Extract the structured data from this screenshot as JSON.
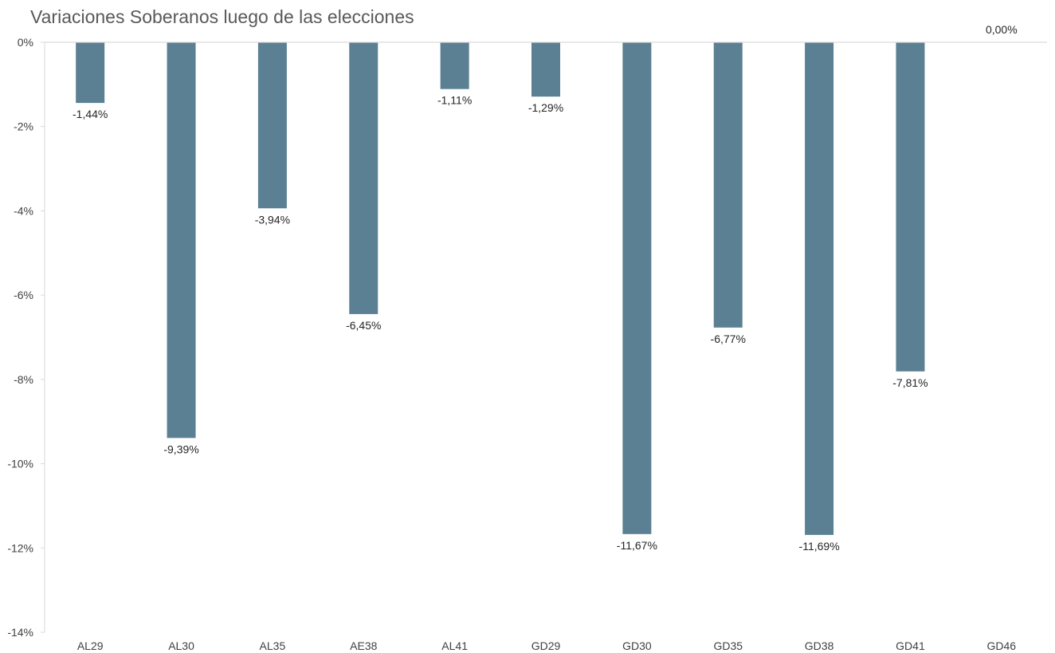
{
  "chart_data": {
    "type": "bar",
    "title": "Variaciones Soberanos luego de las elecciones",
    "categories": [
      "AL29",
      "AL30",
      "AL35",
      "AE38",
      "AL41",
      "GD29",
      "GD30",
      "GD35",
      "GD38",
      "GD41",
      "GD46"
    ],
    "values": [
      -1.44,
      -9.39,
      -3.94,
      -6.45,
      -1.11,
      -1.29,
      -11.67,
      -6.77,
      -11.69,
      -7.81,
      0.0
    ],
    "data_labels": [
      "-1,44%",
      "-9,39%",
      "-3,94%",
      "-6,45%",
      "-1,11%",
      "-1,29%",
      "-11,67%",
      "-6,77%",
      "-11,69%",
      "-7,81%",
      "0,00%"
    ],
    "ylim": [
      -14,
      0
    ],
    "yticks": [
      0,
      -2,
      -4,
      -6,
      -8,
      -10,
      -12,
      -14
    ],
    "ytick_labels": [
      "0%",
      "-2%",
      "-4%",
      "-6%",
      "-8%",
      "-10%",
      "-12%",
      "-14%"
    ],
    "xlabel": "",
    "ylabel": "",
    "grid": false,
    "legend": "none",
    "bar_color": "#5b8093",
    "axis_color": "#d9d9d9"
  }
}
